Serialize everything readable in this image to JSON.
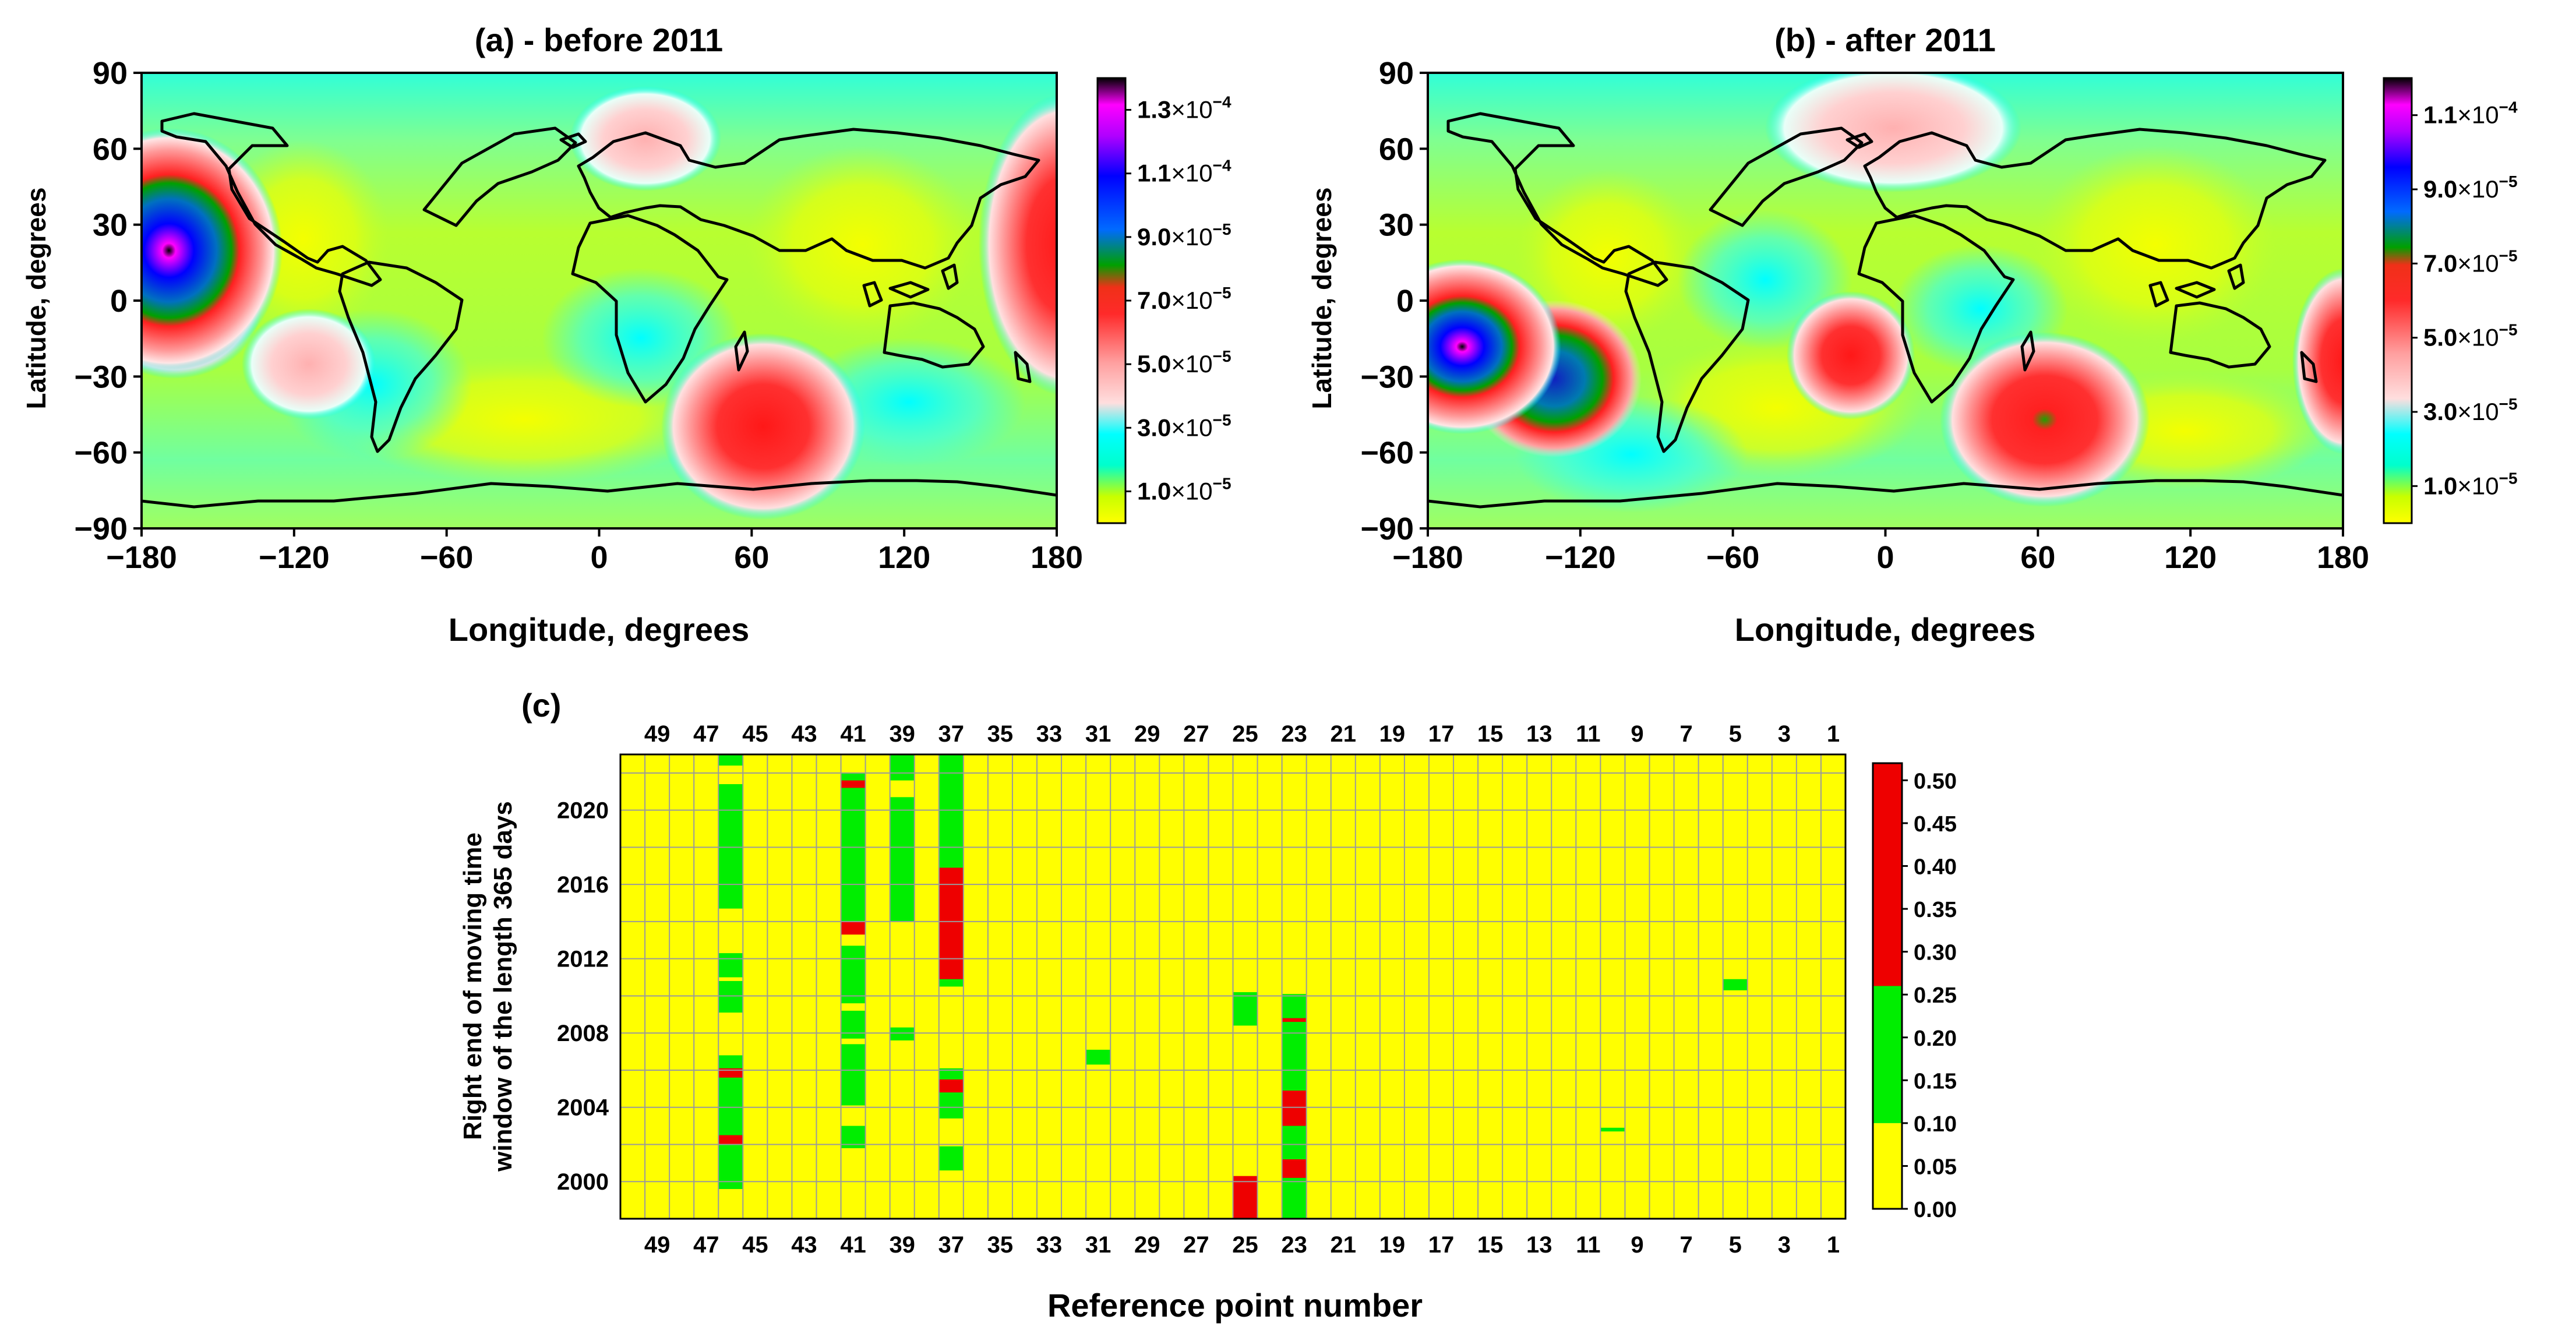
{
  "figure": {
    "caption_c": "(c)"
  },
  "chart_data": [
    {
      "id": "a",
      "type": "heatmap",
      "title": "(a) - before 2011",
      "xlabel": "Longitude, degrees",
      "ylabel": "Latitude, degrees",
      "xlim": [
        -180,
        180
      ],
      "ylim": [
        -90,
        90
      ],
      "xticks": [
        "−180",
        "−120",
        "−60",
        "0",
        "60",
        "120",
        "180"
      ],
      "yticks": [
        "90",
        "60",
        "30",
        "0",
        "−30",
        "−60",
        "−90"
      ],
      "colorbar": {
        "min": 0,
        "max": 0.00014,
        "labels": [
          {
            "value": 0.00013,
            "mant": "1.3",
            "exp": "−4"
          },
          {
            "value": 0.00011,
            "mant": "1.1",
            "exp": "−4"
          },
          {
            "value": 9e-05,
            "mant": "9.0",
            "exp": "−5"
          },
          {
            "value": 7e-05,
            "mant": "7.0",
            "exp": "−5"
          },
          {
            "value": 5e-05,
            "mant": "5.0",
            "exp": "−5"
          },
          {
            "value": 3e-05,
            "mant": "3.0",
            "exp": "−5"
          },
          {
            "value": 1e-05,
            "mant": "1.0",
            "exp": "−5"
          }
        ]
      },
      "features": [
        {
          "lon": -170,
          "lat": 20,
          "value": 0.000135,
          "kind": "maximum"
        },
        {
          "lon": -120,
          "lat": -25,
          "value": 4e-05,
          "kind": "local maximum"
        },
        {
          "lon": 65,
          "lat": -45,
          "value": 6.5e-05,
          "kind": "local maximum"
        },
        {
          "lon": 30,
          "lat": 65,
          "value": 3.5e-05,
          "kind": "local maximum"
        }
      ]
    },
    {
      "id": "b",
      "type": "heatmap",
      "title": "(b) - after 2011",
      "xlabel": "Longitude, degrees",
      "ylabel": "Latitude, degrees",
      "xlim": [
        -180,
        180
      ],
      "ylim": [
        -90,
        90
      ],
      "xticks": [
        "−180",
        "−120",
        "−60",
        "0",
        "60",
        "120",
        "180"
      ],
      "yticks": [
        "90",
        "60",
        "30",
        "0",
        "−30",
        "−60",
        "−90"
      ],
      "colorbar": {
        "min": 0,
        "max": 0.00012,
        "labels": [
          {
            "value": 0.00011,
            "mant": "1.1",
            "exp": "−4"
          },
          {
            "value": 9e-05,
            "mant": "9.0",
            "exp": "−5"
          },
          {
            "value": 7e-05,
            "mant": "7.0",
            "exp": "−5"
          },
          {
            "value": 5e-05,
            "mant": "5.0",
            "exp": "−5"
          },
          {
            "value": 3e-05,
            "mant": "3.0",
            "exp": "−5"
          },
          {
            "value": 1e-05,
            "mant": "1.0",
            "exp": "−5"
          }
        ]
      },
      "features": [
        {
          "lon": -165,
          "lat": -17,
          "value": 0.000115,
          "kind": "maximum"
        },
        {
          "lon": -120,
          "lat": -27,
          "value": 9e-05,
          "kind": "local maximum"
        },
        {
          "lon": -10,
          "lat": -20,
          "value": 6e-05,
          "kind": "local maximum"
        },
        {
          "lon": 65,
          "lat": -45,
          "value": 7e-05,
          "kind": "local maximum"
        },
        {
          "lon": 20,
          "lat": 70,
          "value": 3.5e-05,
          "kind": "local maximum"
        }
      ]
    },
    {
      "id": "c",
      "type": "heatmap",
      "xlabel": "Reference point number",
      "ylabel": [
        "Right end of moving time",
        "window of the length 365 days"
      ],
      "x_ticks": [
        "49",
        "47",
        "45",
        "43",
        "41",
        "39",
        "37",
        "35",
        "33",
        "31",
        "29",
        "27",
        "25",
        "23",
        "21",
        "19",
        "17",
        "15",
        "13",
        "11",
        "9",
        "7",
        "5",
        "3",
        "1"
      ],
      "y_ticks": [
        "2020",
        "2016",
        "2012",
        "2008",
        "2004",
        "2000"
      ],
      "ylim": [
        1998,
        2023
      ],
      "colorbar": {
        "labels": [
          "0.50",
          "0.45",
          "0.40",
          "0.35",
          "0.30",
          "0.25",
          "0.20",
          "0.15",
          "0.10",
          "0.05",
          "0.00"
        ],
        "bands": [
          {
            "from": 0.0,
            "to": 0.1,
            "color": "#ffff00"
          },
          {
            "from": 0.1,
            "to": 0.26,
            "color": "#00ee00"
          },
          {
            "from": 0.26,
            "to": 0.52,
            "color": "#ee0000"
          }
        ]
      },
      "cells": [
        {
          "point": 46,
          "from": 2022.4,
          "to": 2023.0,
          "level": "green"
        },
        {
          "point": 46,
          "from": 2014.7,
          "to": 2021.4,
          "level": "green"
        },
        {
          "point": 46,
          "from": 2011.0,
          "to": 2012.3,
          "level": "green"
        },
        {
          "point": 46,
          "from": 2009.1,
          "to": 2010.8,
          "level": "green"
        },
        {
          "point": 46,
          "from": 1999.6,
          "to": 2006.8,
          "level": "green"
        },
        {
          "point": 46,
          "from": 2005.6,
          "to": 2006.1,
          "level": "red"
        },
        {
          "point": 46,
          "from": 2002.0,
          "to": 2002.5,
          "level": "red"
        },
        {
          "point": 41,
          "from": 2014.0,
          "to": 2022.0,
          "level": "green"
        },
        {
          "point": 41,
          "from": 2021.2,
          "to": 2021.6,
          "level": "red"
        },
        {
          "point": 41,
          "from": 2013.3,
          "to": 2014.0,
          "level": "red"
        },
        {
          "point": 41,
          "from": 2009.6,
          "to": 2012.7,
          "level": "green"
        },
        {
          "point": 41,
          "from": 2007.7,
          "to": 2009.2,
          "level": "green"
        },
        {
          "point": 41,
          "from": 2004.1,
          "to": 2007.4,
          "level": "green"
        },
        {
          "point": 41,
          "from": 2001.8,
          "to": 2003.0,
          "level": "green"
        },
        {
          "point": 39,
          "from": 2021.6,
          "to": 2023.0,
          "level": "green"
        },
        {
          "point": 39,
          "from": 2014.0,
          "to": 2020.7,
          "level": "green"
        },
        {
          "point": 39,
          "from": 2007.6,
          "to": 2008.3,
          "level": "green"
        },
        {
          "point": 37,
          "from": 2010.5,
          "to": 2023.0,
          "level": "green"
        },
        {
          "point": 37,
          "from": 2010.9,
          "to": 2016.9,
          "level": "red"
        },
        {
          "point": 37,
          "from": 2003.4,
          "to": 2006.1,
          "level": "green"
        },
        {
          "point": 37,
          "from": 2004.8,
          "to": 2005.5,
          "level": "red"
        },
        {
          "point": 37,
          "from": 2000.6,
          "to": 2001.9,
          "level": "green"
        },
        {
          "point": 31,
          "from": 2006.3,
          "to": 2007.1,
          "level": "green"
        },
        {
          "point": 25,
          "from": 2008.4,
          "to": 2010.2,
          "level": "green"
        },
        {
          "point": 25,
          "from": 1998.0,
          "to": 2000.3,
          "level": "red"
        },
        {
          "point": 23,
          "from": 1998.0,
          "to": 2010.1,
          "level": "green"
        },
        {
          "point": 23,
          "from": 2008.6,
          "to": 2008.8,
          "level": "red"
        },
        {
          "point": 23,
          "from": 2003.0,
          "to": 2004.9,
          "level": "red"
        },
        {
          "point": 23,
          "from": 2000.2,
          "to": 2001.2,
          "level": "red"
        },
        {
          "point": 10,
          "from": 2002.7,
          "to": 2002.9,
          "level": "green"
        },
        {
          "point": 5,
          "from": 2010.3,
          "to": 2010.9,
          "level": "green"
        }
      ]
    }
  ]
}
